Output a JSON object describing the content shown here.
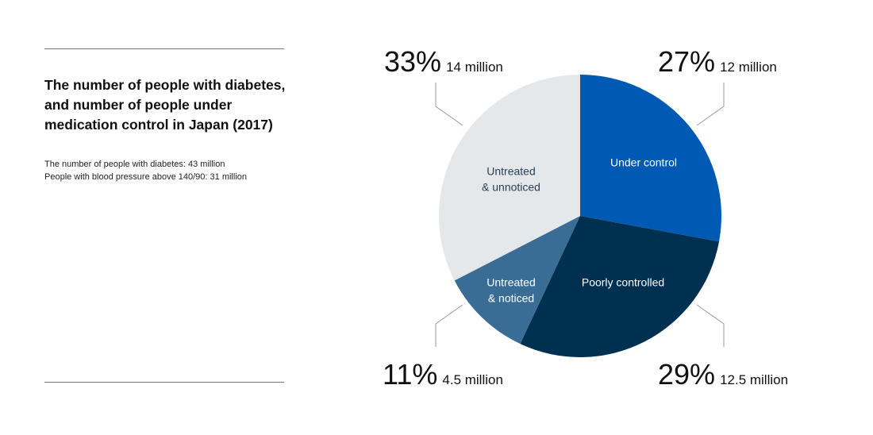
{
  "title": "The number of people with diabetes, and number of people under medication control in Japan (2017)",
  "notes": [
    "The number of people with diabetes: 43 million",
    "People with blood pressure above 140/90: 31 million"
  ],
  "chart_data": {
    "type": "pie",
    "title": "",
    "start_angle_deg": 0,
    "direction": "clockwise",
    "slices": [
      {
        "label_lines": [
          "Under control"
        ],
        "percent_label": "27%",
        "count_label": "12 million",
        "value": 12,
        "color": "#0059b3",
        "text_color": "#ffffff"
      },
      {
        "label_lines": [
          "Poorly controlled"
        ],
        "percent_label": "29%",
        "count_label": "12.5 million",
        "value": 12.5,
        "color": "#00304f",
        "text_color": "#ffffff"
      },
      {
        "label_lines": [
          "Untreated",
          "& noticed"
        ],
        "percent_label": "11%",
        "count_label": "4.5 million",
        "value": 4.5,
        "color": "#3a6d96",
        "text_color": "#ffffff"
      },
      {
        "label_lines": [
          "Untreated",
          "& unnoticed"
        ],
        "percent_label": "33%",
        "count_label": "14 million",
        "value": 14,
        "color": "#e5e8ea",
        "text_color": "#2a3f55"
      }
    ]
  }
}
